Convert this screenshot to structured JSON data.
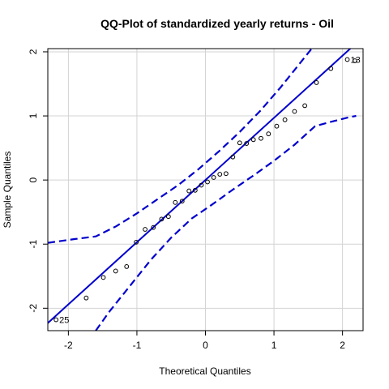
{
  "chart_data": {
    "type": "scatter",
    "title": "QQ-Plot of standardized yearly returns - Oil",
    "xlabel": "Theoretical Quantiles",
    "ylabel": "Sample Quantiles",
    "xlim": [
      -2.3,
      2.3
    ],
    "ylim": [
      -2.35,
      2.05
    ],
    "x_ticks": [
      -2,
      -1,
      0,
      1,
      2
    ],
    "y_ticks": [
      -2,
      -1,
      0,
      1,
      2
    ],
    "grid": true,
    "points": [
      {
        "x": -2.18,
        "y": -2.18
      },
      {
        "x": -1.74,
        "y": -1.84
      },
      {
        "x": -1.49,
        "y": -1.52
      },
      {
        "x": -1.31,
        "y": -1.42
      },
      {
        "x": -1.15,
        "y": -1.35
      },
      {
        "x": -1.01,
        "y": -0.97
      },
      {
        "x": -0.88,
        "y": -0.77
      },
      {
        "x": -0.76,
        "y": -0.74
      },
      {
        "x": -0.64,
        "y": -0.61
      },
      {
        "x": -0.54,
        "y": -0.57
      },
      {
        "x": -0.44,
        "y": -0.35
      },
      {
        "x": -0.34,
        "y": -0.33
      },
      {
        "x": -0.24,
        "y": -0.17
      },
      {
        "x": -0.15,
        "y": -0.16
      },
      {
        "x": -0.06,
        "y": -0.08
      },
      {
        "x": 0.03,
        "y": -0.03
      },
      {
        "x": 0.12,
        "y": 0.04
      },
      {
        "x": 0.21,
        "y": 0.09
      },
      {
        "x": 0.3,
        "y": 0.1
      },
      {
        "x": 0.4,
        "y": 0.36
      },
      {
        "x": 0.5,
        "y": 0.58
      },
      {
        "x": 0.6,
        "y": 0.57
      },
      {
        "x": 0.7,
        "y": 0.63
      },
      {
        "x": 0.81,
        "y": 0.65
      },
      {
        "x": 0.92,
        "y": 0.72
      },
      {
        "x": 1.04,
        "y": 0.84
      },
      {
        "x": 1.16,
        "y": 0.94
      },
      {
        "x": 1.3,
        "y": 1.07
      },
      {
        "x": 1.45,
        "y": 1.16
      },
      {
        "x": 1.62,
        "y": 1.52
      },
      {
        "x": 1.83,
        "y": 1.74
      },
      {
        "x": 2.07,
        "y": 1.88
      },
      {
        "x": 2.18,
        "y": 1.86
      }
    ],
    "point_labels": [
      {
        "text": "25",
        "x": -2.18,
        "y": -2.18
      },
      {
        "text": "13",
        "x": 2.07,
        "y": 1.88
      }
    ],
    "reference_line": {
      "intercept": 0.0,
      "slope": 0.97,
      "color": "#0000CD"
    },
    "envelope_upper": [
      {
        "x": -2.3,
        "y": -0.98
      },
      {
        "x": -1.9,
        "y": -0.92
      },
      {
        "x": -1.6,
        "y": -0.88
      },
      {
        "x": -1.3,
        "y": -0.72
      },
      {
        "x": -1.0,
        "y": -0.52
      },
      {
        "x": -0.7,
        "y": -0.3
      },
      {
        "x": -0.4,
        "y": -0.08
      },
      {
        "x": -0.1,
        "y": 0.17
      },
      {
        "x": 0.2,
        "y": 0.45
      },
      {
        "x": 0.5,
        "y": 0.75
      },
      {
        "x": 0.8,
        "y": 1.08
      },
      {
        "x": 1.1,
        "y": 1.45
      },
      {
        "x": 1.4,
        "y": 1.85
      },
      {
        "x": 1.55,
        "y": 2.05
      }
    ],
    "envelope_lower": [
      {
        "x": -1.6,
        "y": -2.35
      },
      {
        "x": -1.4,
        "y": -2.05
      },
      {
        "x": -1.1,
        "y": -1.65
      },
      {
        "x": -0.8,
        "y": -1.25
      },
      {
        "x": -0.5,
        "y": -0.9
      },
      {
        "x": -0.2,
        "y": -0.6
      },
      {
        "x": 0.1,
        "y": -0.38
      },
      {
        "x": 0.4,
        "y": -0.15
      },
      {
        "x": 0.7,
        "y": 0.07
      },
      {
        "x": 1.0,
        "y": 0.3
      },
      {
        "x": 1.3,
        "y": 0.55
      },
      {
        "x": 1.6,
        "y": 0.84
      },
      {
        "x": 1.8,
        "y": 0.9
      },
      {
        "x": 2.1,
        "y": 0.98
      },
      {
        "x": 2.2,
        "y": 1.0
      }
    ],
    "line_color": "#0000CD",
    "point_color": "#000000"
  }
}
